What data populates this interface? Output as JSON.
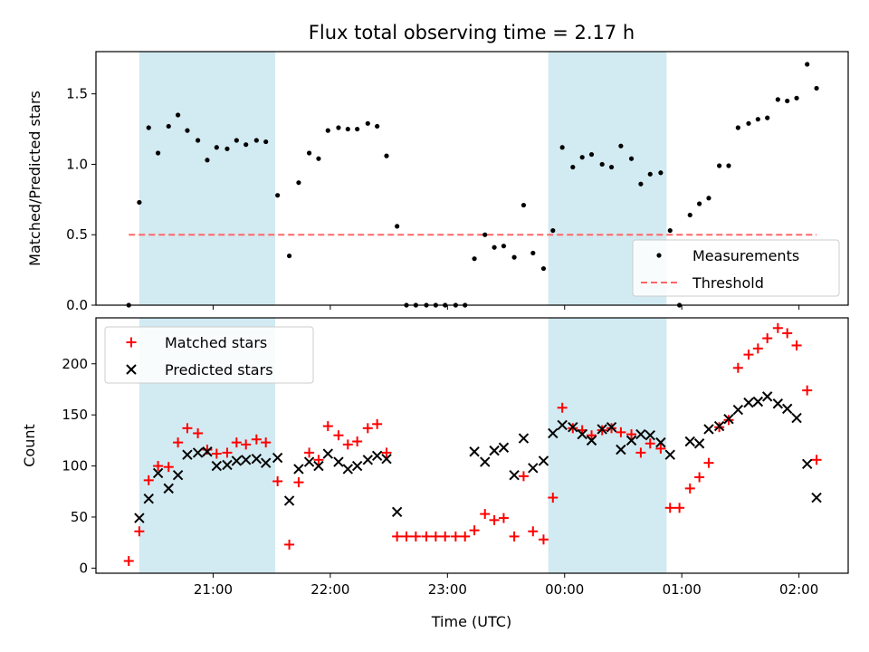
{
  "chart_data": {
    "title": "Flux total observing time = 2.17 h",
    "xlabel": "Time (UTC)",
    "x_ticks": [
      "21:00",
      "22:00",
      "23:00",
      "00:00",
      "01:00",
      "02:00"
    ],
    "x_tick_hours": [
      21,
      22,
      23,
      24,
      25,
      26
    ],
    "x_range_hours": [
      20.0,
      26.42
    ],
    "shaded_intervals_hours": [
      [
        20.37,
        21.53
      ],
      [
        23.86,
        24.87
      ]
    ],
    "shade_color": "#add8e6",
    "panels": [
      {
        "type": "scatter",
        "ylabel": "Matched/Predicted stars",
        "ylim": [
          0,
          1.8
        ],
        "y_ticks": [
          "0.0",
          "0.5",
          "1.0",
          "1.5"
        ],
        "y_tick_values": [
          0,
          0.5,
          1.0,
          1.5
        ],
        "legend_position": "lower right",
        "threshold": {
          "name": "Threshold",
          "value": 0.5,
          "x_range": [
            20.28,
            26.15
          ],
          "color": "#ff6666"
        },
        "series": [
          {
            "name": "Measurements",
            "marker": "dot",
            "color": "#000000",
            "x": [
              20.28,
              20.37,
              20.45,
              20.53,
              20.62,
              20.7,
              20.78,
              20.87,
              20.95,
              21.03,
              21.12,
              21.2,
              21.28,
              21.37,
              21.45,
              21.55,
              21.65,
              21.73,
              21.82,
              21.9,
              21.98,
              22.07,
              22.15,
              22.23,
              22.32,
              22.4,
              22.48,
              22.57,
              22.65,
              22.73,
              22.82,
              22.9,
              22.98,
              23.07,
              23.15,
              23.23,
              23.32,
              23.4,
              23.48,
              23.57,
              23.65,
              23.73,
              23.82,
              23.9,
              23.98,
              24.07,
              24.15,
              24.23,
              24.32,
              24.4,
              24.48,
              24.57,
              24.65,
              24.73,
              24.82,
              24.9,
              24.98,
              25.07,
              25.15,
              25.23,
              25.32,
              25.4,
              25.48,
              25.57,
              25.65,
              25.73,
              25.82,
              25.9,
              25.98,
              26.07,
              26.15
            ],
            "y": [
              0.0,
              0.73,
              1.26,
              1.08,
              1.27,
              1.35,
              1.24,
              1.17,
              1.03,
              1.12,
              1.11,
              1.17,
              1.14,
              1.17,
              1.16,
              0.78,
              0.35,
              0.87,
              1.08,
              1.04,
              1.24,
              1.26,
              1.25,
              1.25,
              1.29,
              1.27,
              1.06,
              0.56,
              0.0,
              0.0,
              0.0,
              0.0,
              0.0,
              0.0,
              0.0,
              0.33,
              0.5,
              0.41,
              0.42,
              0.34,
              0.71,
              0.37,
              0.26,
              0.53,
              1.12,
              0.98,
              1.05,
              1.07,
              1.0,
              0.98,
              1.13,
              1.04,
              0.86,
              0.93,
              0.94,
              0.53,
              0.0,
              0.64,
              0.72,
              0.76,
              0.99,
              0.99,
              1.26,
              1.29,
              1.32,
              1.33,
              1.46,
              1.45,
              1.47,
              1.71,
              1.54
            ]
          }
        ]
      },
      {
        "type": "scatter",
        "ylabel": "Count",
        "ylim": [
          -5,
          245
        ],
        "y_ticks": [
          "0",
          "50",
          "100",
          "150",
          "200"
        ],
        "y_tick_values": [
          0,
          50,
          100,
          150,
          200
        ],
        "legend_position": "upper left",
        "series": [
          {
            "name": "Matched stars",
            "marker": "plus",
            "color": "#ff0000",
            "x": [
              20.28,
              20.37,
              20.45,
              20.53,
              20.62,
              20.7,
              20.78,
              20.87,
              20.95,
              21.03,
              21.12,
              21.2,
              21.28,
              21.37,
              21.45,
              21.55,
              21.65,
              21.73,
              21.82,
              21.9,
              21.98,
              22.07,
              22.15,
              22.23,
              22.32,
              22.4,
              22.48,
              22.57,
              22.65,
              22.73,
              22.82,
              22.9,
              22.98,
              23.07,
              23.15,
              23.23,
              23.32,
              23.4,
              23.48,
              23.57,
              23.65,
              23.73,
              23.82,
              23.9,
              23.98,
              24.07,
              24.15,
              24.23,
              24.32,
              24.4,
              24.48,
              24.57,
              24.65,
              24.73,
              24.82,
              24.9,
              24.98,
              25.07,
              25.15,
              25.23,
              25.32,
              25.4,
              25.48,
              25.57,
              25.65,
              25.73,
              25.82,
              25.9,
              25.98,
              26.07,
              26.15
            ],
            "y": [
              7,
              36,
              86,
              100,
              99,
              123,
              137,
              132,
              116,
              112,
              113,
              123,
              121,
              126,
              123,
              85,
              23,
              84,
              113,
              106,
              139,
              130,
              121,
              124,
              137,
              141,
              113,
              31,
              31,
              31,
              31,
              31,
              31,
              31,
              31,
              37,
              53,
              47,
              49,
              31,
              90,
              36,
              28,
              69,
              157,
              137,
              135,
              130,
              135,
              137,
              133,
              131,
              113,
              122,
              117,
              59,
              59,
              78,
              89,
              103,
              138,
              145,
              196,
              209,
              215,
              225,
              235,
              230,
              218,
              174,
              106
            ]
          },
          {
            "name": "Predicted stars",
            "marker": "x",
            "color": "#000000",
            "x": [
              20.37,
              20.45,
              20.53,
              20.62,
              20.7,
              20.78,
              20.87,
              20.95,
              21.03,
              21.12,
              21.2,
              21.28,
              21.37,
              21.45,
              21.55,
              21.65,
              21.73,
              21.82,
              21.9,
              21.98,
              22.07,
              22.15,
              22.23,
              22.32,
              22.4,
              22.48,
              22.57,
              23.23,
              23.32,
              23.4,
              23.48,
              23.57,
              23.65,
              23.73,
              23.82,
              23.9,
              23.98,
              24.07,
              24.15,
              24.23,
              24.32,
              24.4,
              24.48,
              24.57,
              24.65,
              24.73,
              24.82,
              24.9,
              25.07,
              25.15,
              25.23,
              25.32,
              25.4,
              25.48,
              25.57,
              25.65,
              25.73,
              25.82,
              25.9,
              25.98,
              26.07,
              26.15
            ],
            "y": [
              49,
              68,
              93,
              78,
              91,
              111,
              113,
              114,
              100,
              101,
              105,
              106,
              107,
              103,
              108,
              66,
              97,
              104,
              100,
              112,
              104,
              97,
              100,
              106,
              110,
              107,
              55,
              114,
              104,
              115,
              118,
              91,
              127,
              98,
              105,
              132,
              140,
              138,
              131,
              125,
              136,
              138,
              116,
              125,
              131,
              130,
              123,
              111,
              124,
              122,
              136,
              139,
              146,
              155,
              162,
              163,
              168,
              161,
              156,
              147,
              102,
              69
            ]
          }
        ]
      }
    ]
  }
}
